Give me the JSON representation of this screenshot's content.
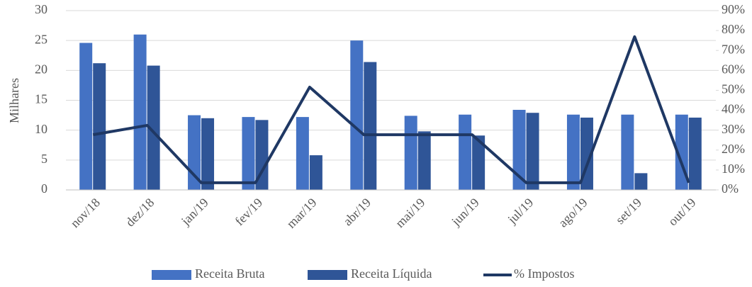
{
  "chart_data": {
    "type": "bar_line",
    "ylabel": "Milhares",
    "categories": [
      "nov/18",
      "dez/18",
      "jan/19",
      "fev/19",
      "mar/19",
      "abr/19",
      "mai/19",
      "jun/19",
      "jul/19",
      "ago/19",
      "set/19",
      "out/19"
    ],
    "series": [
      {
        "name": "Receita Bruta",
        "color": "#4472c4",
        "type": "bar",
        "values": [
          24.6,
          26.0,
          12.5,
          12.2,
          12.2,
          25.0,
          12.4,
          12.6,
          13.4,
          12.6,
          12.6,
          12.6
        ]
      },
      {
        "name": "Receita Líquida",
        "color": "#2f5597",
        "type": "bar",
        "values": [
          21.2,
          20.8,
          12.0,
          11.7,
          5.8,
          21.4,
          9.8,
          9.1,
          12.9,
          12.1,
          2.8,
          12.1
        ]
      },
      {
        "name": "% Impostos",
        "color": "#1f3864",
        "type": "line",
        "axis": "y2",
        "values": [
          27.7,
          32.4,
          3.6,
          3.6,
          51.6,
          27.7,
          27.7,
          27.7,
          3.6,
          3.6,
          76.9,
          3.6
        ]
      }
    ],
    "ylim": [
      0,
      30
    ],
    "yticks": [
      0,
      5,
      10,
      15,
      20,
      25,
      30
    ],
    "y2lim": [
      0,
      90
    ],
    "y2ticks": [
      {
        "value": 0,
        "label": "0%"
      },
      {
        "value": 10,
        "label": "10%"
      },
      {
        "value": 20,
        "label": "20%"
      },
      {
        "value": 30,
        "label": "30%"
      },
      {
        "value": 40,
        "label": "40%"
      },
      {
        "value": 50,
        "label": "50%"
      },
      {
        "value": 60,
        "label": "60%"
      },
      {
        "value": 70,
        "label": "70%"
      },
      {
        "value": 80,
        "label": "80%"
      },
      {
        "value": 90,
        "label": "90%"
      }
    ],
    "grid": true,
    "legend": "bottom"
  }
}
